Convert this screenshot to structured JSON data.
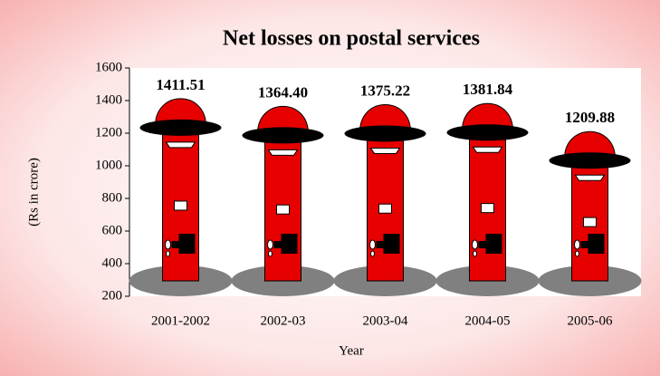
{
  "chart_data": {
    "type": "bar",
    "title": "Net losses on postal services",
    "x_label": "Year",
    "y_label": "(Rs in crore)",
    "categories": [
      "2001-2002",
      "2002-03",
      "2003-04",
      "2004-05",
      "2005-06"
    ],
    "values": [
      1411.51,
      1364.4,
      1375.22,
      1381.84,
      1209.88
    ],
    "value_labels": [
      "1411.51",
      "1364.40",
      "1375.22",
      "1381.84",
      "1209.88"
    ],
    "color": "#e60000",
    "ylim": [
      200,
      1600
    ],
    "yticks": [
      200,
      400,
      600,
      800,
      1000,
      1200,
      1400,
      1600
    ],
    "grid": false
  }
}
